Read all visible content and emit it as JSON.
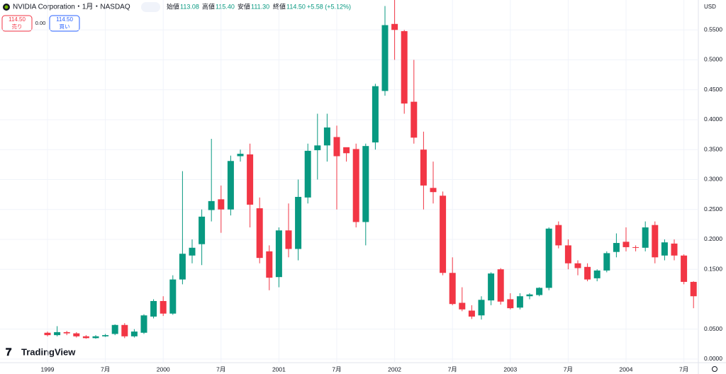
{
  "chart_data": {
    "type": "candlestick",
    "title": "NVIDIA Corporation・1月・NASDAQ",
    "ohlc_header": [
      {
        "label": "始値",
        "value": "113.08"
      },
      {
        "label": "高値",
        "value": "115.40"
      },
      {
        "label": "安値",
        "value": "111.30"
      },
      {
        "label": "終値",
        "value": "114.50"
      }
    ],
    "change": "+5.58 (+5.12%)",
    "sell": {
      "price": "114.50",
      "label": "売り"
    },
    "spread": "0.00",
    "buy": {
      "price": "114.50",
      "label": "買い"
    },
    "currency": "USD",
    "brand": "TradingView",
    "time_labels": [
      "1999",
      "7月",
      "2000",
      "7月",
      "2001",
      "7月",
      "2002",
      "7月",
      "2003",
      "7月",
      "2004",
      "7月"
    ],
    "up_color": "#089981",
    "down_color": "#f23645",
    "ylim": [
      -0.006,
      0.6
    ],
    "yticks": [
      {
        "value": 0,
        "label": "0.0000"
      },
      {
        "value": 0.05,
        "label": "0.0500"
      },
      {
        "value": 0.15,
        "label": "0.1500"
      },
      {
        "value": 0.2,
        "label": "0.2000"
      },
      {
        "value": 0.25,
        "label": "0.2500"
      },
      {
        "value": 0.3,
        "label": "0.3000"
      },
      {
        "value": 0.35,
        "label": "0.3500"
      },
      {
        "value": 0.4,
        "label": "0.4000"
      },
      {
        "value": 0.45,
        "label": "0.4500"
      },
      {
        "value": 0.5,
        "label": "0.5000"
      },
      {
        "value": 0.55,
        "label": "0.5500"
      }
    ],
    "open": [
      0.044,
      0.04,
      0.045,
      0.043,
      0.038,
      0.035,
      0.038,
      0.042,
      0.057,
      0.038,
      0.044,
      0.071,
      0.097,
      0.076,
      0.133,
      0.173,
      0.192,
      0.249,
      0.267,
      0.25,
      0.339,
      0.342,
      0.252,
      0.18,
      0.137,
      0.215,
      0.184,
      0.27,
      0.349,
      0.357,
      0.371,
      0.354,
      0.351,
      0.229,
      0.362,
      0.448,
      0.56,
      0.548,
      0.43,
      0.35,
      0.286,
      0.273,
      0.144,
      0.094,
      0.081,
      0.073,
      0.098,
      0.15,
      0.1,
      0.086,
      0.105,
      0.107,
      0.119,
      0.224,
      0.19,
      0.16,
      0.154,
      0.135,
      0.148,
      0.179,
      0.196,
      0.187,
      0.186,
      0.224,
      0.173,
      0.193,
      0.173,
      0.129
    ],
    "high": [
      0.046,
      0.055,
      0.047,
      0.045,
      0.04,
      0.04,
      0.042,
      0.058,
      0.06,
      0.05,
      0.075,
      0.1,
      0.105,
      0.14,
      0.314,
      0.2,
      0.25,
      0.368,
      0.29,
      0.34,
      0.35,
      0.36,
      0.27,
      0.19,
      0.22,
      0.26,
      0.3,
      0.36,
      0.41,
      0.41,
      0.39,
      0.35,
      0.36,
      0.36,
      0.46,
      0.59,
      0.6,
      0.55,
      0.5,
      0.38,
      0.33,
      0.28,
      0.17,
      0.12,
      0.09,
      0.105,
      0.145,
      0.152,
      0.11,
      0.11,
      0.11,
      0.12,
      0.22,
      0.23,
      0.2,
      0.165,
      0.16,
      0.15,
      0.18,
      0.21,
      0.22,
      0.19,
      0.23,
      0.23,
      0.2,
      0.2,
      0.175,
      0.13
    ],
    "low": [
      0.038,
      0.038,
      0.04,
      0.036,
      0.034,
      0.034,
      0.037,
      0.04,
      0.035,
      0.036,
      0.042,
      0.068,
      0.072,
      0.074,
      0.125,
      0.16,
      0.157,
      0.23,
      0.211,
      0.24,
      0.33,
      0.22,
      0.16,
      0.115,
      0.12,
      0.17,
      0.165,
      0.26,
      0.3,
      0.33,
      0.25,
      0.33,
      0.22,
      0.19,
      0.35,
      0.44,
      0.5,
      0.41,
      0.36,
      0.25,
      0.26,
      0.14,
      0.09,
      0.08,
      0.067,
      0.066,
      0.09,
      0.091,
      0.083,
      0.083,
      0.1,
      0.105,
      0.115,
      0.185,
      0.15,
      0.14,
      0.13,
      0.13,
      0.145,
      0.17,
      0.18,
      0.18,
      0.18,
      0.16,
      0.165,
      0.165,
      0.125,
      0.085
    ],
    "close": [
      0.04,
      0.045,
      0.043,
      0.038,
      0.035,
      0.038,
      0.04,
      0.057,
      0.038,
      0.046,
      0.073,
      0.097,
      0.076,
      0.133,
      0.176,
      0.186,
      0.238,
      0.264,
      0.25,
      0.331,
      0.343,
      0.258,
      0.169,
      0.136,
      0.215,
      0.184,
      0.271,
      0.348,
      0.357,
      0.387,
      0.339,
      0.344,
      0.229,
      0.356,
      0.456,
      0.558,
      0.55,
      0.427,
      0.37,
      0.29,
      0.279,
      0.144,
      0.092,
      0.083,
      0.071,
      0.099,
      0.143,
      0.096,
      0.085,
      0.105,
      0.108,
      0.119,
      0.218,
      0.19,
      0.16,
      0.152,
      0.133,
      0.148,
      0.177,
      0.194,
      0.187,
      0.186,
      0.22,
      0.17,
      0.195,
      0.173,
      0.129,
      0.105
    ]
  }
}
